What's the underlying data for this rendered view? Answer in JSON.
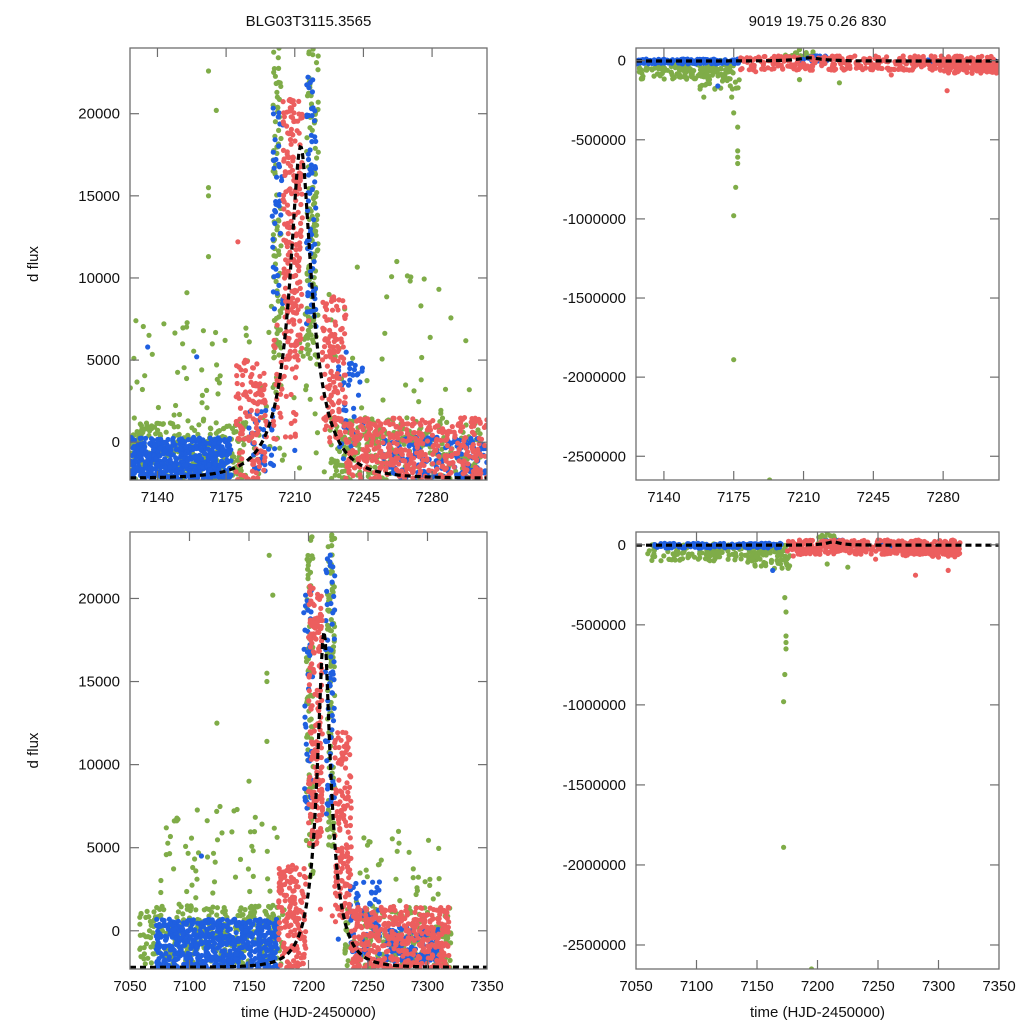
{
  "chart_data": [
    {
      "id": "top-left",
      "type": "scatter",
      "title": "BLG03T3115.3565",
      "xlabel": "",
      "ylabel": "d flux",
      "xlim": [
        7126,
        7308
      ],
      "ylim": [
        -2300,
        24000
      ],
      "xticks": [
        7140,
        7175,
        7210,
        7245,
        7280
      ],
      "yticks": [
        0,
        5000,
        10000,
        15000,
        20000
      ],
      "ytick_labels": [
        "0",
        "5000",
        "10000",
        "15000",
        "20000"
      ],
      "xtick_labels": [
        "7140",
        "7175",
        "7210",
        "7245",
        "7280"
      ],
      "grid": false,
      "legend": "none",
      "model": {
        "t0": 7213,
        "tE": 19.75,
        "u0": 0.26,
        "peak": 18000,
        "baseline": -2200,
        "style": "dashed",
        "color": "#000000"
      },
      "series": [
        {
          "name": "green",
          "color": "#7fac48",
          "clusters": [
            [
              7126,
              7185,
              -2300,
              1200,
              260
            ],
            [
              7126,
              7175,
              1000,
              7500,
              40
            ],
            [
              7199,
              7203,
              3000,
              24000,
              90
            ],
            [
              7216,
              7222,
              5000,
              24000,
              110
            ],
            [
              7228,
              7305,
              -2300,
              1500,
              260
            ],
            [
              7240,
              7300,
              1500,
              11000,
              25
            ],
            [
              7185,
              7240,
              -2000,
              9000,
              60
            ]
          ],
          "outliers": [
            [
              7166,
              22600
            ],
            [
              7170,
              20200
            ],
            [
              7166,
              15500
            ],
            [
              7166,
              15000
            ],
            [
              7166,
              11300
            ],
            [
              7129,
              7400
            ],
            [
              7155,
              9100
            ],
            [
              7262,
              11000
            ],
            [
              7299,
              3200
            ]
          ]
        },
        {
          "name": "blue",
          "color": "#1f5fe0",
          "clusters": [
            [
              7126,
              7178,
              -2300,
              300,
              520
            ],
            [
              7198,
              7204,
              8000,
              20500,
              40
            ],
            [
              7216,
              7221,
              7000,
              23000,
              70
            ],
            [
              7186,
              7200,
              -1800,
              2000,
              40
            ],
            [
              7232,
              7245,
              -1500,
              5500,
              40
            ],
            [
              7255,
              7308,
              -2300,
              300,
              160
            ]
          ],
          "outliers": [
            [
              7135,
              5800
            ],
            [
              7160,
              5200
            ],
            [
              7210,
              -500
            ]
          ]
        },
        {
          "name": "red",
          "color": "#ec5e5e",
          "clusters": [
            [
              7180,
              7196,
              -2300,
              5000,
              120
            ],
            [
              7204,
              7214,
              5000,
              21000,
              200
            ],
            [
              7199,
              7212,
              0,
              8000,
              40
            ],
            [
              7224,
              7236,
              0,
              9000,
              130
            ],
            [
              7236,
              7308,
              -2300,
              1500,
              420
            ]
          ],
          "outliers": [
            [
              7181,
              12200
            ],
            [
              7210,
              1300
            ],
            [
              7217,
              7400
            ]
          ]
        }
      ]
    },
    {
      "id": "top-right",
      "type": "scatter",
      "title": "9019  19.75  0.26  830",
      "xlabel": "",
      "ylabel": "",
      "xlim": [
        7126,
        7308
      ],
      "ylim": [
        -2650000,
        80000
      ],
      "xticks": [
        7140,
        7175,
        7210,
        7245,
        7280
      ],
      "xtick_labels": [
        "7140",
        "7175",
        "7210",
        "7245",
        "7280"
      ],
      "yticks": [
        0,
        -500000,
        -1000000,
        -1500000,
        -2000000,
        -2500000
      ],
      "ytick_labels": [
        "0",
        "-500000",
        "-1000000",
        "-1500000",
        "-2000000",
        "-2500000"
      ],
      "grid": false,
      "legend": "none",
      "model": {
        "t0": 7213,
        "tE": 19.75,
        "u0": 0.26,
        "peak": 18000,
        "baseline": -2200,
        "style": "dashed",
        "color": "#000000"
      },
      "series": [
        {
          "name": "green",
          "color": "#7fac48",
          "clusters": [
            [
              7126,
              7175,
              -120000,
              5000,
              160
            ],
            [
              7150,
              7178,
              -180000,
              -20000,
              40
            ],
            [
              7200,
              7215,
              0,
              60000,
              20
            ]
          ],
          "outliers": [
            [
              7175,
              -330000
            ],
            [
              7177,
              -420000
            ],
            [
              7177,
              -570000
            ],
            [
              7177,
              -610000
            ],
            [
              7177,
              -650000
            ],
            [
              7176,
              -800000
            ],
            [
              7175,
              -980000
            ],
            [
              7175,
              -1890000
            ],
            [
              7193,
              -2650000
            ],
            [
              7208,
              70000
            ],
            [
              7208,
              -120000
            ],
            [
              7228,
              -140000
            ],
            [
              7160,
              -230000
            ],
            [
              7174,
              -230000
            ]
          ]
        },
        {
          "name": "blue",
          "color": "#1f5fe0",
          "clusters": [
            [
              7126,
              7178,
              -20000,
              10000,
              180
            ],
            [
              7208,
              7222,
              -5000,
              30000,
              30
            ],
            [
              7270,
              7285,
              -10000,
              5000,
              30
            ]
          ],
          "outliers": [
            [
              7167,
              -160000
            ],
            [
              7306,
              0
            ]
          ]
        },
        {
          "name": "red",
          "color": "#ec5e5e",
          "clusters": [
            [
              7178,
              7308,
              -60000,
              30000,
              360
            ],
            [
              7280,
              7308,
              -80000,
              10000,
              90
            ]
          ],
          "outliers": [
            [
              7282,
              -190000
            ],
            [
              7186,
              -70000
            ],
            [
              7254,
              -90000
            ]
          ]
        }
      ]
    },
    {
      "id": "bottom-left",
      "type": "scatter",
      "title": "",
      "xlabel": "time (HJD-2450000)",
      "ylabel": "d flux",
      "xlim": [
        7050,
        7350
      ],
      "ylim": [
        -2300,
        24000
      ],
      "xticks": [
        7050,
        7100,
        7150,
        7200,
        7250,
        7300,
        7350
      ],
      "xtick_labels": [
        "7050",
        "7100",
        "7150",
        "7200",
        "7250",
        "7300",
        "7350"
      ],
      "yticks": [
        0,
        5000,
        10000,
        15000,
        20000
      ],
      "ytick_labels": [
        "0",
        "5000",
        "10000",
        "15000",
        "20000"
      ],
      "grid": false,
      "legend": "none",
      "model": {
        "t0": 7213,
        "tE": 19.75,
        "u0": 0.26,
        "peak": 18000,
        "baseline": -2200,
        "style": "dashed",
        "color": "#000000"
      },
      "series": [
        {
          "name": "green",
          "color": "#7fac48",
          "clusters": [
            [
              7058,
              7180,
              -2000,
              1500,
              320
            ],
            [
              7070,
              7175,
              1000,
              7500,
              60
            ],
            [
              7198,
              7204,
              3000,
              24000,
              80
            ],
            [
              7216,
              7222,
              5000,
              24000,
              100
            ],
            [
              7230,
              7320,
              -2300,
              1500,
              200
            ],
            [
              7240,
              7310,
              1500,
              6000,
              30
            ]
          ],
          "outliers": [
            [
              7167,
              22600
            ],
            [
              7170,
              20200
            ],
            [
              7165,
              15500
            ],
            [
              7165,
              15000
            ],
            [
              7123,
              12500
            ],
            [
              7165,
              11400
            ],
            [
              7150,
              9000
            ],
            [
              7288,
              3200
            ],
            [
              7302,
              3100
            ],
            [
              7140,
              7300
            ]
          ]
        },
        {
          "name": "blue",
          "color": "#1f5fe0",
          "clusters": [
            [
              7072,
              7175,
              -2300,
              700,
              620
            ],
            [
              7196,
              7204,
              7000,
              20500,
              40
            ],
            [
              7214,
              7222,
              7000,
              23000,
              60
            ],
            [
              7235,
              7260,
              -1800,
              3000,
              60
            ],
            [
              7265,
              7310,
              -2000,
              200,
              120
            ]
          ],
          "outliers": [
            [
              7110,
              4500
            ],
            [
              7225,
              -500
            ]
          ]
        },
        {
          "name": "red",
          "color": "#ec5e5e",
          "clusters": [
            [
              7175,
              7198,
              -2300,
              4000,
              160
            ],
            [
              7200,
              7212,
              5000,
              21000,
              180
            ],
            [
              7222,
              7236,
              500,
              12000,
              150
            ],
            [
              7235,
              7318,
              -2300,
              1500,
              420
            ]
          ],
          "outliers": [
            [
              7210,
              1300
            ],
            [
              7190,
              600
            ],
            [
              7220,
              900
            ]
          ]
        }
      ]
    },
    {
      "id": "bottom-right",
      "type": "scatter",
      "title": "",
      "xlabel": "time (HJD-2450000)",
      "ylabel": "",
      "xlim": [
        7050,
        7350
      ],
      "ylim": [
        -2650000,
        80000
      ],
      "xticks": [
        7050,
        7100,
        7150,
        7200,
        7250,
        7300,
        7350
      ],
      "xtick_labels": [
        "7050",
        "7100",
        "7150",
        "7200",
        "7250",
        "7300",
        "7350"
      ],
      "yticks": [
        0,
        -500000,
        -1000000,
        -1500000,
        -2000000,
        -2500000
      ],
      "ytick_labels": [
        "0",
        "-500000",
        "-1000000",
        "-1500000",
        "-2000000",
        "-2500000"
      ],
      "grid": false,
      "legend": "none",
      "model": {
        "t0": 7213,
        "tE": 19.75,
        "u0": 0.26,
        "peak": 18000,
        "baseline": -2200,
        "style": "dashed",
        "color": "#000000"
      },
      "series": [
        {
          "name": "green",
          "color": "#7fac48",
          "clusters": [
            [
              7058,
              7175,
              -100000,
              5000,
              160
            ],
            [
              7140,
              7178,
              -150000,
              -20000,
              40
            ],
            [
              7200,
              7215,
              0,
              60000,
              20
            ],
            [
              7270,
              7290,
              -30000,
              10000,
              15
            ]
          ],
          "outliers": [
            [
              7173,
              -330000
            ],
            [
              7174,
              -420000
            ],
            [
              7174,
              -570000
            ],
            [
              7174,
              -610000
            ],
            [
              7174,
              -650000
            ],
            [
              7173,
              -810000
            ],
            [
              7172,
              -980000
            ],
            [
              7172,
              -1890000
            ],
            [
              7195,
              -2650000
            ],
            [
              7208,
              75000
            ],
            [
              7208,
              -120000
            ],
            [
              7225,
              -140000
            ]
          ]
        },
        {
          "name": "blue",
          "color": "#1f5fe0",
          "clusters": [
            [
              7065,
              7172,
              -20000,
              10000,
              200
            ],
            [
              7205,
              7222,
              -5000,
              30000,
              30
            ],
            [
              7248,
              7270,
              -10000,
              5000,
              30
            ]
          ],
          "outliers": [
            [
              7163,
              -160000
            ]
          ]
        },
        {
          "name": "red",
          "color": "#ec5e5e",
          "clusters": [
            [
              7175,
              7318,
              -60000,
              30000,
              380
            ],
            [
              7270,
              7318,
              -80000,
              10000,
              80
            ]
          ],
          "outliers": [
            [
              7281,
              -190000
            ],
            [
              7308,
              -160000
            ],
            [
              7180,
              -70000
            ],
            [
              7248,
              -90000
            ]
          ]
        }
      ]
    }
  ]
}
